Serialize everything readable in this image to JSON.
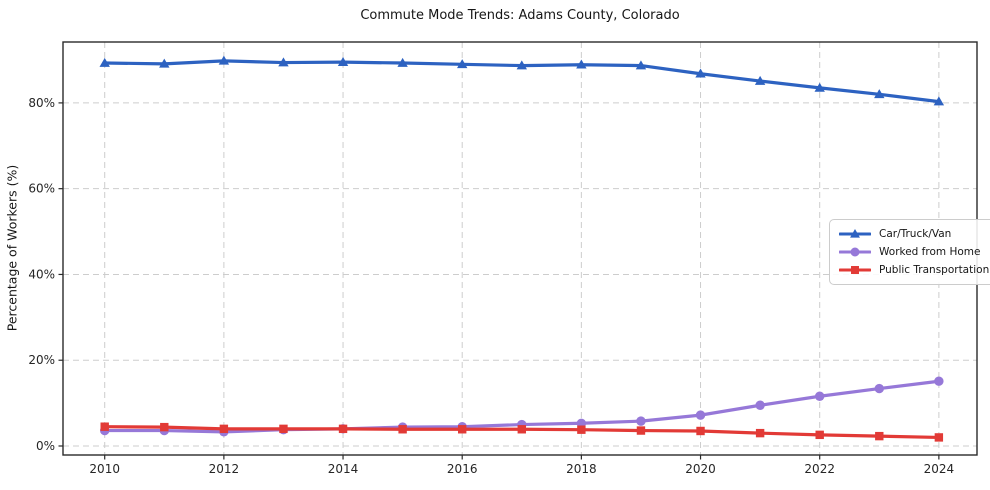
{
  "chart_data": {
    "type": "line",
    "title": "Commute Mode Trends: Adams County, Colorado",
    "xlabel": "",
    "ylabel": "Percentage of Workers (%)",
    "x": [
      2010,
      2011,
      2012,
      2013,
      2014,
      2015,
      2016,
      2017,
      2018,
      2019,
      2020,
      2021,
      2022,
      2023,
      2024
    ],
    "series": [
      {
        "name": "Car/Truck/Van",
        "color": "#2d62c1",
        "marker": "triangle",
        "values": [
          89.3,
          89.1,
          89.8,
          89.4,
          89.5,
          89.3,
          89.0,
          88.7,
          88.9,
          88.7,
          86.8,
          85.1,
          83.5,
          82.0,
          80.3
        ]
      },
      {
        "name": "Worked from Home",
        "color": "#9678d8",
        "marker": "circle",
        "values": [
          3.6,
          3.6,
          3.3,
          3.8,
          4.0,
          4.4,
          4.5,
          5.0,
          5.3,
          5.8,
          7.2,
          9.5,
          11.6,
          13.4,
          15.1
        ]
      },
      {
        "name": "Public Transportation",
        "color": "#e23a36",
        "marker": "square",
        "values": [
          4.5,
          4.4,
          4.0,
          4.0,
          4.0,
          3.9,
          3.9,
          3.9,
          3.8,
          3.6,
          3.5,
          3.0,
          2.6,
          2.3,
          2.0
        ]
      }
    ],
    "x_ticks": [
      2010,
      2012,
      2014,
      2016,
      2018,
      2020,
      2022,
      2024
    ],
    "x_tick_labels": [
      "2010",
      "2012",
      "2014",
      "2016",
      "2018",
      "2020",
      "2022",
      "2024"
    ],
    "y_ticks": [
      0,
      20,
      40,
      60,
      80
    ],
    "y_tick_labels": [
      "0%",
      "20%",
      "40%",
      "60%",
      "80%"
    ],
    "xlim": [
      2009.3,
      2024.64
    ],
    "ylim": [
      -2.1,
      94.2
    ],
    "grid": true,
    "grid_style": "dashed",
    "legend_position": "center-right"
  },
  "colors": {
    "background": "#ffffff",
    "grid": "#cdcdcd",
    "spine": "#2a2a2a",
    "tick": "#2a2a2a",
    "tick_label": "#262626",
    "title": "#161616",
    "legend_border": "#cccccc"
  }
}
